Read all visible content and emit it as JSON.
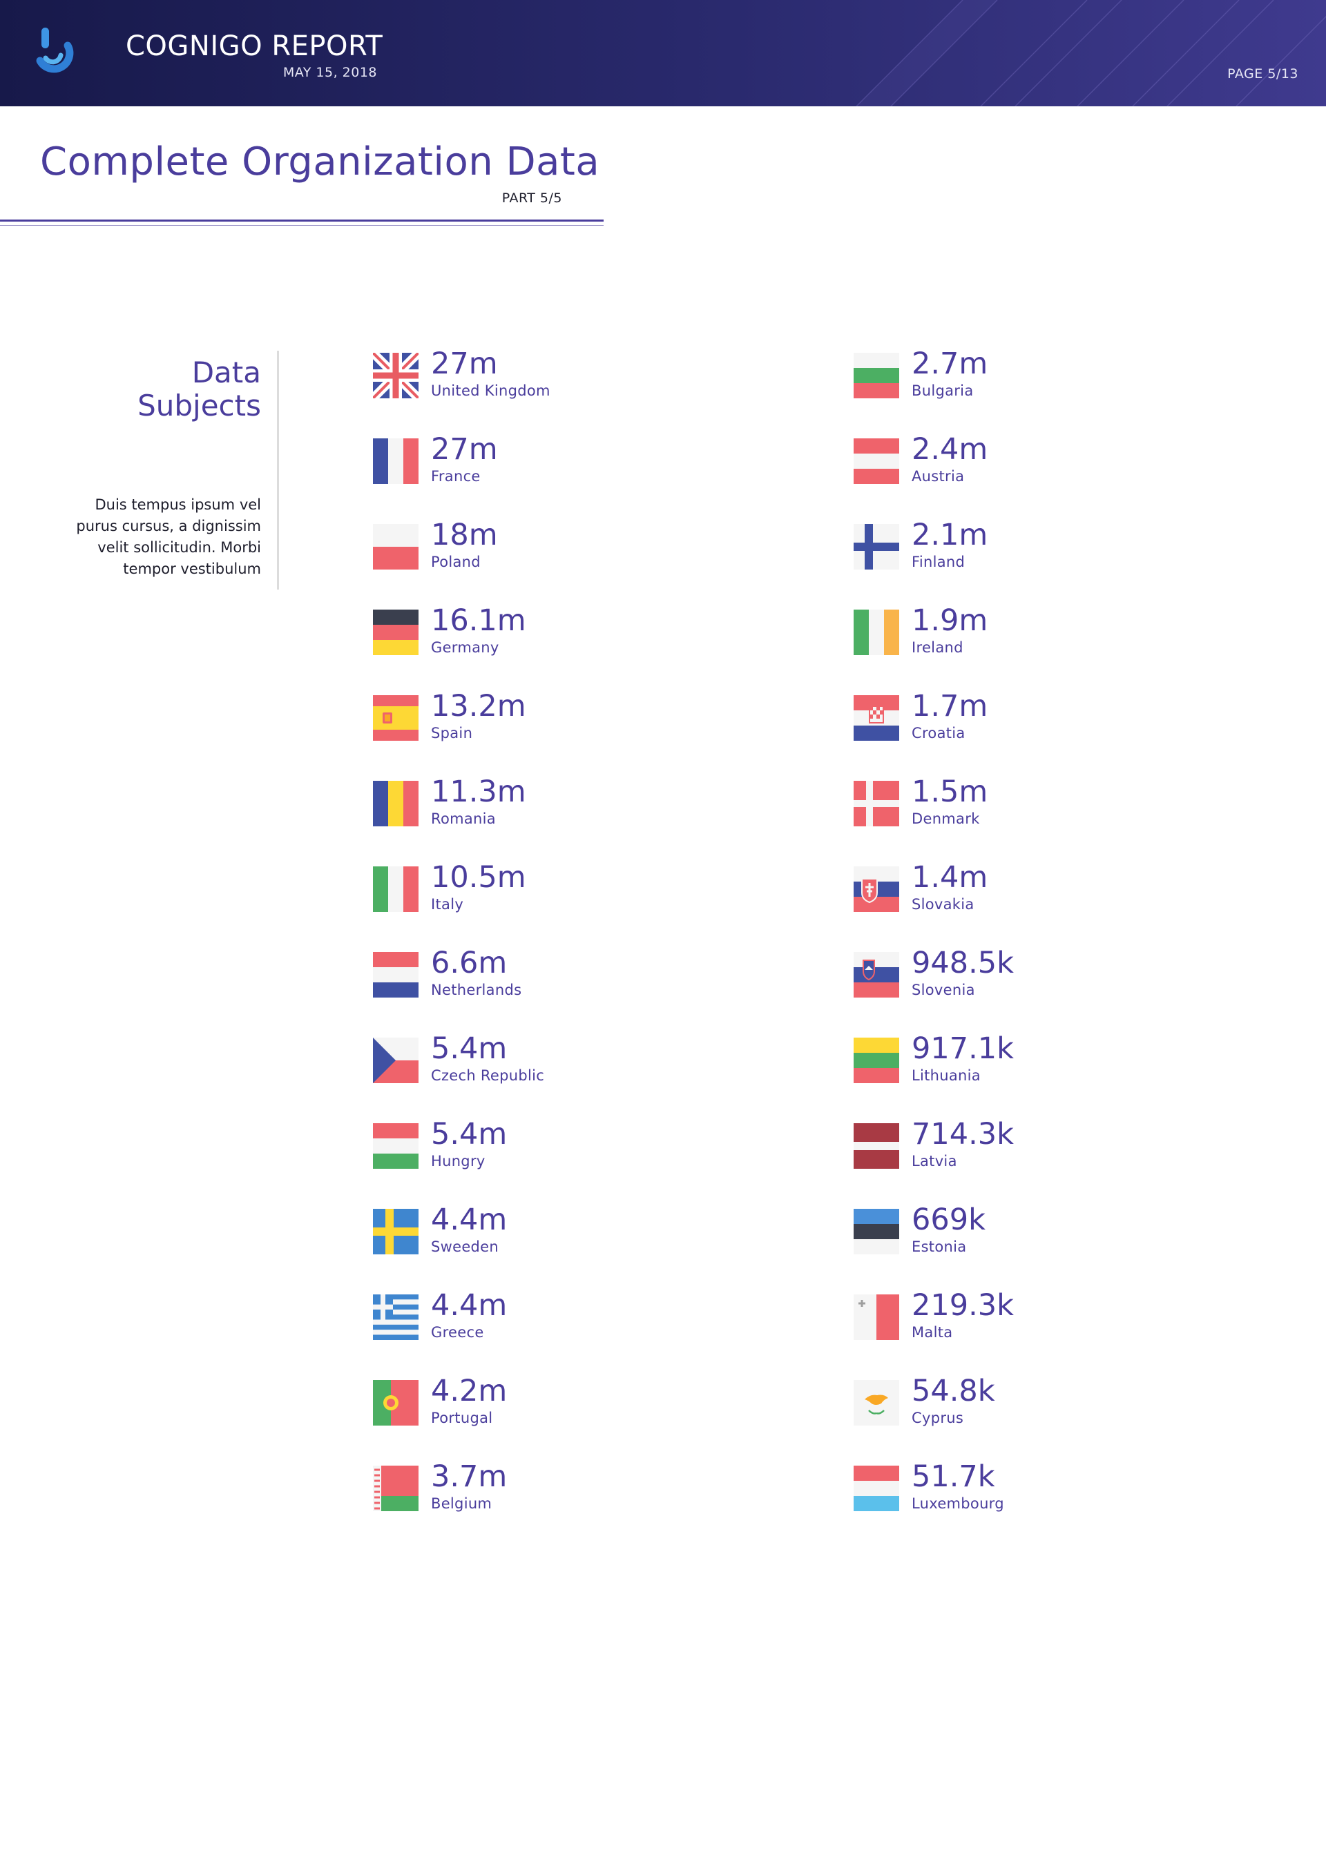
{
  "header": {
    "title": "COGNIGO REPORT",
    "date": "MAY 15, 2018",
    "page": "PAGE 5/13",
    "logo_icon": "cognigo-logo-icon"
  },
  "page": {
    "title": "Complete Organization Data",
    "part": "PART 5/5"
  },
  "sidebar": {
    "heading_line1": "Data",
    "heading_line2": "Subjects",
    "text_lines": [
      "Duis tempus ipsum vel",
      "purus cursus, a dignissim",
      "velit sollicitudin. Morbi",
      "tempor vestibulum"
    ]
  },
  "colors": {
    "accent": "#4a3d9c",
    "header_dark": "#17194a",
    "header_light": "#3f3a8e"
  },
  "countries_left": [
    {
      "value": "27m",
      "name": "United Kingdom",
      "flag": "uk"
    },
    {
      "value": "27m",
      "name": "France",
      "flag": "france"
    },
    {
      "value": "18m",
      "name": "Poland",
      "flag": "poland"
    },
    {
      "value": "16.1m",
      "name": "Germany",
      "flag": "germany"
    },
    {
      "value": "13.2m",
      "name": "Spain",
      "flag": "spain"
    },
    {
      "value": "11.3m",
      "name": "Romania",
      "flag": "romania"
    },
    {
      "value": "10.5m",
      "name": "Italy",
      "flag": "italy"
    },
    {
      "value": "6.6m",
      "name": "Netherlands",
      "flag": "netherlands"
    },
    {
      "value": "5.4m",
      "name": "Czech Republic",
      "flag": "czech"
    },
    {
      "value": "5.4m",
      "name": "Hungry",
      "flag": "hungary"
    },
    {
      "value": "4.4m",
      "name": "Sweeden",
      "flag": "sweden"
    },
    {
      "value": "4.4m",
      "name": "Greece",
      "flag": "greece"
    },
    {
      "value": "4.2m",
      "name": "Portugal",
      "flag": "portugal"
    },
    {
      "value": "3.7m",
      "name": "Belgium",
      "flag": "belarus"
    }
  ],
  "countries_right": [
    {
      "value": "2.7m",
      "name": "Bulgaria",
      "flag": "bulgaria"
    },
    {
      "value": "2.4m",
      "name": "Austria",
      "flag": "austria"
    },
    {
      "value": "2.1m",
      "name": "Finland",
      "flag": "finland"
    },
    {
      "value": "1.9m",
      "name": "Ireland",
      "flag": "ireland"
    },
    {
      "value": "1.7m",
      "name": "Croatia",
      "flag": "croatia"
    },
    {
      "value": "1.5m",
      "name": "Denmark",
      "flag": "denmark"
    },
    {
      "value": "1.4m",
      "name": "Slovakia",
      "flag": "slovakia"
    },
    {
      "value": "948.5k",
      "name": "Slovenia",
      "flag": "slovenia"
    },
    {
      "value": "917.1k",
      "name": "Lithuania",
      "flag": "lithuania"
    },
    {
      "value": "714.3k",
      "name": "Latvia",
      "flag": "latvia"
    },
    {
      "value": "669k",
      "name": "Estonia",
      "flag": "estonia"
    },
    {
      "value": "219.3k",
      "name": "Malta",
      "flag": "malta"
    },
    {
      "value": "54.8k",
      "name": "Cyprus",
      "flag": "cyprus"
    },
    {
      "value": "51.7k",
      "name": "Luxembourg",
      "flag": "luxembourg"
    }
  ]
}
